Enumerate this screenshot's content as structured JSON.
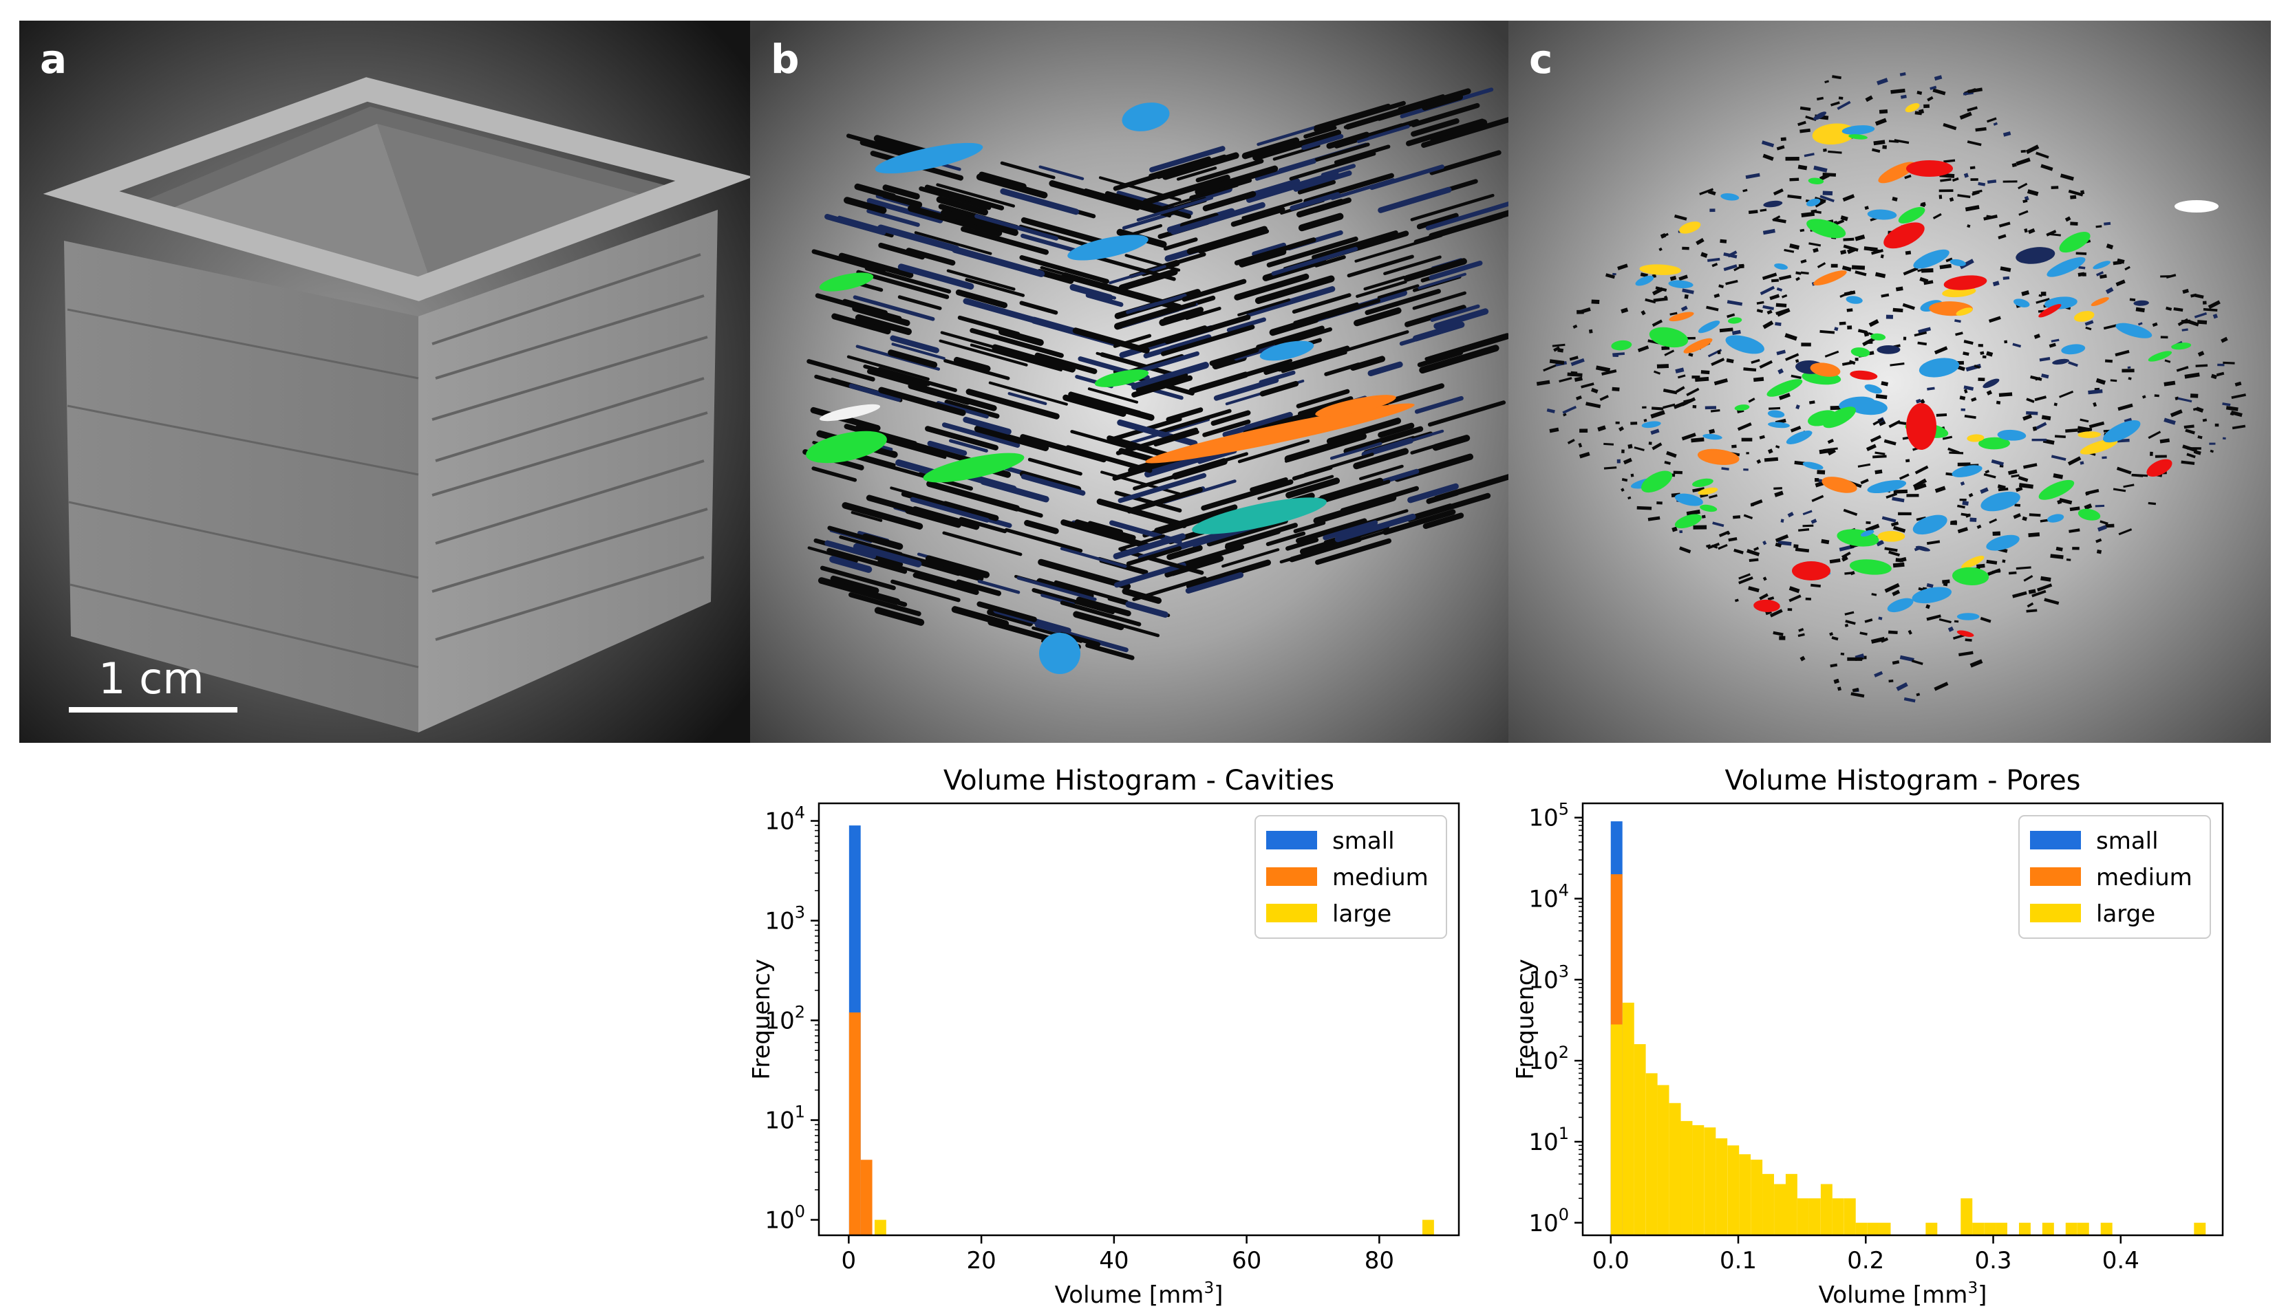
{
  "panels": [
    {
      "label": "a",
      "scale_bar": "1 cm"
    },
    {
      "label": "b"
    },
    {
      "label": "c"
    }
  ],
  "colors": {
    "small": "#1f6fdc",
    "medium": "#ff7f0e",
    "large": "#ffd700",
    "crack_black": "#0a0a0a",
    "crack_navy": "#1a2a5c",
    "crack_blue": "#2a9ae0",
    "crack_green": "#22e03a",
    "crack_orange": "#ff7f1a",
    "crack_teal": "#1fb5a5",
    "crack_red": "#ee1111",
    "crack_yellow": "#ffd21a"
  },
  "chart_data": [
    {
      "type": "bar",
      "title": "Volume Histogram - Cavities",
      "xlabel": "Volume [mm",
      "xlabel_sup": "3",
      "xlabel_end": "]",
      "ylabel": "Frequency",
      "yscale": "log",
      "ylim": [
        0.7,
        15000
      ],
      "xlim": [
        -4.5,
        92
      ],
      "xticks": [
        "0",
        "20",
        "40",
        "60",
        "80"
      ],
      "xtick_values": [
        0,
        20,
        40,
        60,
        80
      ],
      "yticks_base": "10",
      "yticks_exp": [
        "0",
        "1",
        "2",
        "3",
        "4"
      ],
      "ytick_values": [
        1,
        10,
        100,
        1000,
        10000
      ],
      "bin_width": 1.75,
      "legend": [
        "small",
        "medium",
        "large"
      ],
      "legend_position": "upper right",
      "series": [
        {
          "name": "small",
          "bins": [
            [
              0.05,
              9000
            ]
          ]
        },
        {
          "name": "medium",
          "bins": [
            [
              0.05,
              120
            ],
            [
              1.8,
              4
            ]
          ]
        },
        {
          "name": "large",
          "bins": [
            [
              3.9,
              1
            ],
            [
              86.5,
              1
            ]
          ]
        }
      ]
    },
    {
      "type": "bar",
      "title": "Volume Histogram - Pores",
      "xlabel": "Volume [mm",
      "xlabel_sup": "3",
      "xlabel_end": "]",
      "ylabel": "Frequency",
      "yscale": "log",
      "ylim": [
        0.7,
        150000
      ],
      "xlim": [
        -0.022,
        0.48
      ],
      "xticks": [
        "0.0",
        "0.1",
        "0.2",
        "0.3",
        "0.4"
      ],
      "xtick_values": [
        0,
        0.1,
        0.2,
        0.3,
        0.4
      ],
      "yticks_base": "10",
      "yticks_exp": [
        "0",
        "1",
        "2",
        "3",
        "4",
        "5"
      ],
      "ytick_values": [
        1,
        10,
        100,
        1000,
        10000,
        100000
      ],
      "bin_width": 0.00915,
      "legend": [
        "small",
        "medium",
        "large"
      ],
      "legend_position": "upper right",
      "series": [
        {
          "name": "small",
          "bins": [
            [
              0.0,
              90000
            ]
          ]
        },
        {
          "name": "medium",
          "bins": [
            [
              0.0,
              20000
            ]
          ]
        },
        {
          "name": "large",
          "bins": [
            [
              0.0,
              280
            ],
            [
              0.0092,
              520
            ],
            [
              0.0183,
              160
            ],
            [
              0.0275,
              70
            ],
            [
              0.0366,
              50
            ],
            [
              0.0458,
              30
            ],
            [
              0.0549,
              18
            ],
            [
              0.064,
              16
            ],
            [
              0.0732,
              15
            ],
            [
              0.0823,
              11
            ],
            [
              0.0915,
              9
            ],
            [
              0.1006,
              7
            ],
            [
              0.1098,
              6
            ],
            [
              0.1189,
              4
            ],
            [
              0.1281,
              3
            ],
            [
              0.1372,
              4
            ],
            [
              0.1464,
              2
            ],
            [
              0.1555,
              2
            ],
            [
              0.1647,
              3
            ],
            [
              0.1738,
              2
            ],
            [
              0.183,
              2
            ],
            [
              0.1921,
              1
            ],
            [
              0.2013,
              1
            ],
            [
              0.2104,
              1
            ],
            [
              0.247,
              1
            ],
            [
              0.2745,
              2
            ],
            [
              0.2836,
              1
            ],
            [
              0.2928,
              1
            ],
            [
              0.3019,
              1
            ],
            [
              0.3202,
              1
            ],
            [
              0.3385,
              1
            ],
            [
              0.3568,
              1
            ],
            [
              0.366,
              1
            ],
            [
              0.3843,
              1
            ],
            [
              0.4575,
              1
            ]
          ]
        }
      ]
    }
  ]
}
